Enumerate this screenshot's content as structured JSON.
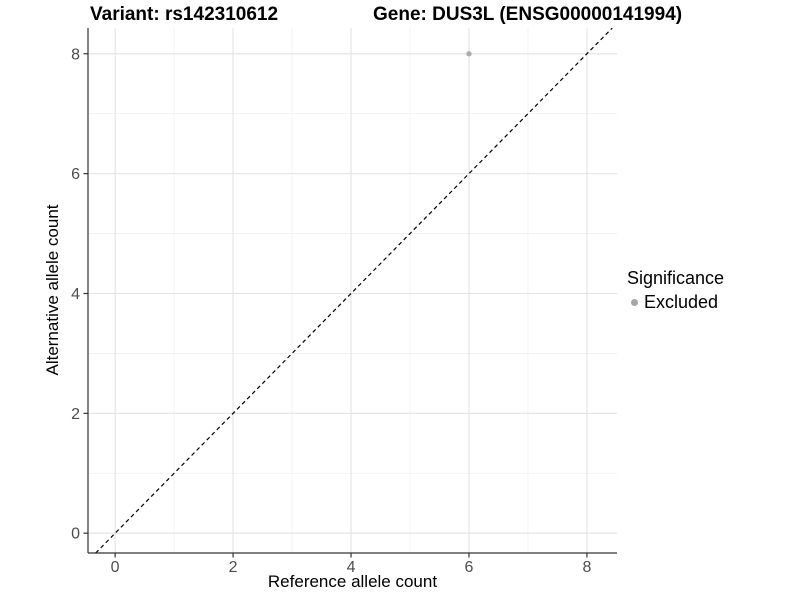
{
  "chart_data": {
    "type": "scatter",
    "title_left": "Variant: rs142310612",
    "title_right": "Gene: DUS3L (ENSG00000141994)",
    "xlabel": "Reference allele count",
    "ylabel": "Alternative allele count",
    "xlim": [
      -0.46,
      8.51
    ],
    "ylim": [
      -0.33,
      8.43
    ],
    "xticks": [
      0,
      2,
      4,
      6,
      8
    ],
    "yticks": [
      0,
      2,
      4,
      6,
      8
    ],
    "minor_xticks": [
      1,
      3,
      5,
      7
    ],
    "minor_yticks": [
      1,
      3,
      5,
      7
    ],
    "grid": "major_and_minor",
    "legend_position": "right",
    "series": [
      {
        "name": "Excluded",
        "color": "#aeaeae",
        "points": [
          {
            "x": 6,
            "y": 8
          }
        ]
      }
    ],
    "reference_line": {
      "kind": "identity",
      "slope": 1,
      "intercept": 0,
      "style": "dashed",
      "color": "#000000"
    },
    "legend": {
      "title": "Significance",
      "entries": [
        {
          "label": "Excluded",
          "color": "#a6a6a6"
        }
      ]
    },
    "colors": {
      "grid_major": "#e3e3e3",
      "grid_minor": "#f1f1f1",
      "axis_line": "#333333",
      "tick_label": "#4d4d4d",
      "title_text": "#000000"
    }
  }
}
